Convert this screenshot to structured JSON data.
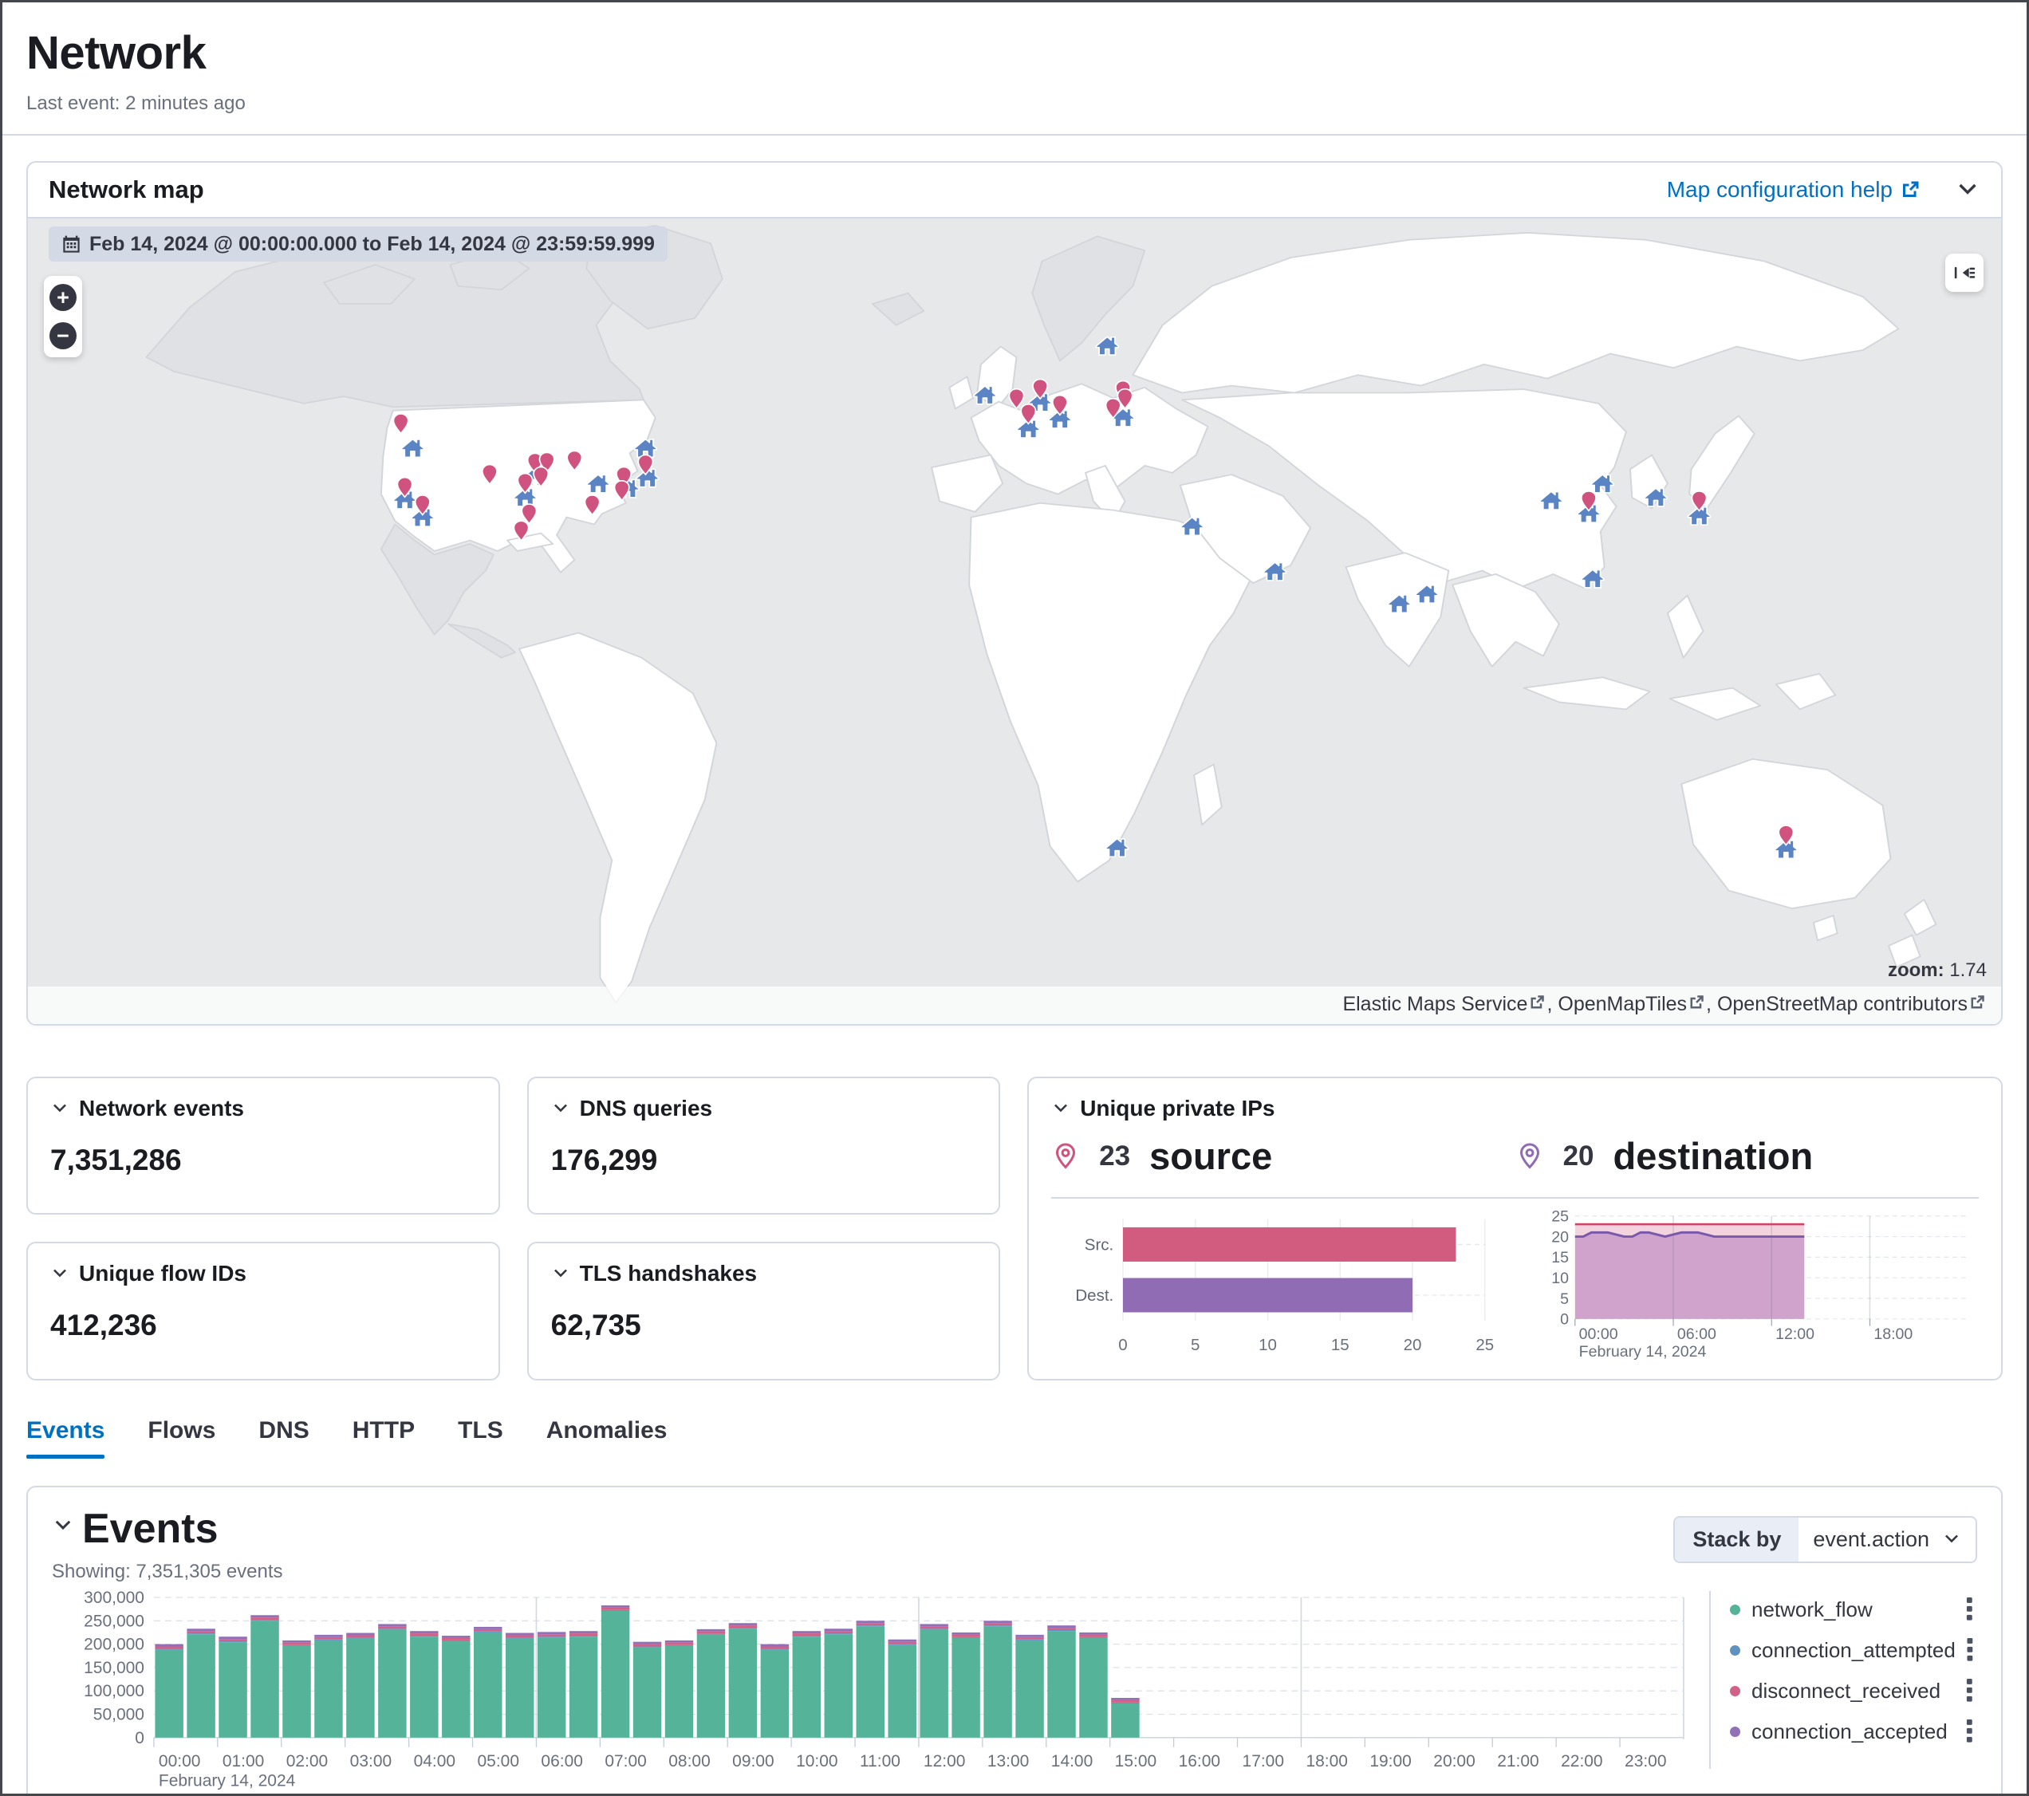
{
  "page": {
    "title": "Network",
    "last_event": "Last event: 2 minutes ago"
  },
  "icons": {
    "calendar": "calendar-grid",
    "external_link": "box-arrow",
    "chevron_down": "v-chevron",
    "zoom_in": "+",
    "zoom_out": "−",
    "layer_collapse": "arrow-into-lines",
    "source_pin": "location-teardrop",
    "destination_pin": "house",
    "more_actions": "vertical-boxes"
  },
  "map_panel": {
    "title": "Network map",
    "help_link_label": "Map configuration help",
    "date_range_badge": "Feb 14, 2024 @ 00:00:00.000 to Feb 14, 2024 @ 23:59:59.999",
    "zoom_label": "zoom:",
    "zoom_value": "1.74",
    "attribution_links": [
      "Elastic Maps Service",
      "OpenMapTiles",
      "OpenStreetMap contributors"
    ],
    "attribution_separator": ", ",
    "pin_colors": {
      "source": "#d0527f",
      "destination": "#5b84c4"
    },
    "pins": {
      "source": [
        [
          18.9,
          25.8
        ],
        [
          19.1,
          33.7
        ],
        [
          20.0,
          35.9
        ],
        [
          23.4,
          32.1
        ],
        [
          25.2,
          33.2
        ],
        [
          25.4,
          37.0
        ],
        [
          25.0,
          39.1
        ],
        [
          25.7,
          30.7
        ],
        [
          26.3,
          30.6
        ],
        [
          26.0,
          32.4
        ],
        [
          27.7,
          30.4
        ],
        [
          28.6,
          35.9
        ],
        [
          30.2,
          32.4
        ],
        [
          30.1,
          34.1
        ],
        [
          31.3,
          30.9
        ],
        [
          50.1,
          22.7
        ],
        [
          51.3,
          21.5
        ],
        [
          50.7,
          24.6
        ],
        [
          52.3,
          23.5
        ],
        [
          55.0,
          23.9
        ],
        [
          55.5,
          21.7
        ],
        [
          55.6,
          22.7
        ],
        [
          79.1,
          35.4
        ],
        [
          84.7,
          35.4
        ],
        [
          89.1,
          76.9
        ]
      ],
      "destination": [
        [
          19.5,
          28.4
        ],
        [
          19.1,
          34.8
        ],
        [
          20.0,
          37.0
        ],
        [
          25.2,
          34.5
        ],
        [
          25.7,
          31.9
        ],
        [
          28.9,
          32.8
        ],
        [
          30.4,
          33.4
        ],
        [
          31.4,
          32.1
        ],
        [
          31.3,
          28.4
        ],
        [
          48.5,
          21.8
        ],
        [
          51.3,
          22.7
        ],
        [
          50.7,
          26.0
        ],
        [
          52.3,
          24.8
        ],
        [
          55.5,
          24.6
        ],
        [
          54.7,
          15.7
        ],
        [
          59.0,
          38.1
        ],
        [
          63.2,
          43.7
        ],
        [
          69.5,
          47.7
        ],
        [
          70.9,
          46.5
        ],
        [
          77.2,
          34.9
        ],
        [
          79.8,
          32.8
        ],
        [
          79.1,
          36.5
        ],
        [
          82.5,
          34.5
        ],
        [
          84.7,
          36.8
        ],
        [
          79.3,
          44.6
        ],
        [
          55.2,
          78.0
        ],
        [
          89.1,
          78.2
        ]
      ]
    }
  },
  "stat_cards": [
    {
      "title": "Network events",
      "value": "7,351,286"
    },
    {
      "title": "DNS queries",
      "value": "176,299"
    },
    {
      "title": "Unique flow IDs",
      "value": "412,236"
    },
    {
      "title": "TLS handshakes",
      "value": "62,735"
    }
  ],
  "unique_ips": {
    "title": "Unique private IPs",
    "source_count": "23",
    "source_label": "source",
    "destination_count": "20",
    "destination_label": "destination"
  },
  "tabs": [
    {
      "label": "Events",
      "active": true
    },
    {
      "label": "Flows"
    },
    {
      "label": "DNS"
    },
    {
      "label": "HTTP"
    },
    {
      "label": "TLS"
    },
    {
      "label": "Anomalies"
    }
  ],
  "events_panel": {
    "title": "Events",
    "showing": "Showing: 7,351,305 events",
    "stack_by_label": "Stack by",
    "stack_by_value": "event.action"
  },
  "chart_data": [
    {
      "id": "unique-private-ips-bar",
      "type": "bar",
      "orientation": "horizontal",
      "categories": [
        "Src.",
        "Dest."
      ],
      "values": [
        23,
        20
      ],
      "colors": [
        "#d25b80",
        "#8f6cb4"
      ],
      "xlim": [
        0,
        25
      ],
      "xticks": [
        0,
        5,
        10,
        15,
        20,
        25
      ],
      "grid": true,
      "legend_position": "none"
    },
    {
      "id": "unique-private-ips-area",
      "type": "area",
      "x_unit": "hour",
      "x_start": 0,
      "x_step": 0.5,
      "xlim_hours": [
        0,
        24
      ],
      "ylim": [
        0,
        25
      ],
      "yticks": [
        25,
        20,
        15,
        10,
        5,
        0
      ],
      "xticks": [
        {
          "hour": 0,
          "label": "00:00"
        },
        {
          "hour": 6,
          "label": "06:00"
        },
        {
          "hour": 12,
          "label": "12:00"
        },
        {
          "hour": 18,
          "label": "18:00"
        }
      ],
      "x_axis_secondary_label": "February 14, 2024",
      "series": [
        {
          "name": "source",
          "color": "#d0436a",
          "fill": "#f3d4de",
          "values": [
            23,
            23,
            23,
            23,
            23,
            23,
            23,
            23,
            23,
            23,
            23,
            23,
            23,
            23,
            23,
            23,
            23,
            23,
            23,
            23,
            23,
            23,
            23,
            23,
            23,
            23,
            23,
            23,
            23
          ]
        },
        {
          "name": "destination",
          "color": "#7a59ad",
          "fill": "#d0a3cc",
          "values": [
            20,
            20,
            21,
            21,
            21,
            20.5,
            20,
            20,
            21,
            21,
            20.5,
            20,
            20.5,
            21,
            21,
            21,
            20.5,
            20,
            20,
            20,
            20,
            20,
            20,
            20,
            20,
            20,
            20,
            20,
            20
          ]
        }
      ]
    },
    {
      "id": "events-histogram",
      "type": "bar",
      "stacked": true,
      "bucket_minutes": 30,
      "x_start_hour": 0,
      "xlim_hours": [
        0,
        24
      ],
      "ylim": [
        0,
        300000
      ],
      "yticks": [
        0,
        50000,
        100000,
        150000,
        200000,
        250000,
        300000
      ],
      "xticks": [
        "00:00",
        "01:00",
        "02:00",
        "03:00",
        "04:00",
        "05:00",
        "06:00",
        "07:00",
        "08:00",
        "09:00",
        "10:00",
        "11:00",
        "12:00",
        "13:00",
        "14:00",
        "15:00",
        "16:00",
        "17:00",
        "18:00",
        "19:00",
        "20:00",
        "21:00",
        "22:00",
        "23:00"
      ],
      "x_axis_secondary_label": "February 14, 2024",
      "legend_position": "right",
      "series": [
        {
          "name": "network_flow",
          "color": "#54b399",
          "values": [
            188000,
            221000,
            204000,
            250000,
            196000,
            208000,
            212000,
            231000,
            216000,
            206000,
            225000,
            212000,
            214000,
            216000,
            271000,
            193000,
            196000,
            220000,
            233000,
            188000,
            216000,
            221000,
            238000,
            198000,
            231000,
            213000,
            238000,
            208000,
            228000,
            213000,
            73000
          ]
        },
        {
          "name": "connection_attempted",
          "color": "#6092c0",
          "values": [
            2000,
            2000,
            2000,
            2000,
            2000,
            2000,
            2000,
            2000,
            2000,
            2000,
            2000,
            2000,
            2000,
            2000,
            2000,
            2000,
            2000,
            2000,
            2000,
            2000,
            2000,
            2000,
            2000,
            2000,
            2000,
            2000,
            2000,
            2000,
            2000,
            2000,
            2000
          ]
        },
        {
          "name": "disconnect_received",
          "color": "#d36086",
          "values": [
            5000,
            5000,
            5000,
            5000,
            5000,
            5000,
            5000,
            5000,
            5000,
            5000,
            5000,
            5000,
            5000,
            5000,
            5000,
            5000,
            5000,
            5000,
            5000,
            5000,
            5000,
            5000,
            5000,
            5000,
            5000,
            5000,
            5000,
            5000,
            5000,
            5000,
            5000
          ]
        },
        {
          "name": "connection_accepted",
          "color": "#9170b8",
          "values": [
            5000,
            5000,
            5000,
            5000,
            5000,
            5000,
            5000,
            5000,
            5000,
            5000,
            5000,
            5000,
            5000,
            5000,
            5000,
            5000,
            5000,
            5000,
            5000,
            5000,
            5000,
            5000,
            5000,
            5000,
            5000,
            5000,
            5000,
            5000,
            5000,
            5000,
            5000
          ]
        }
      ]
    }
  ]
}
